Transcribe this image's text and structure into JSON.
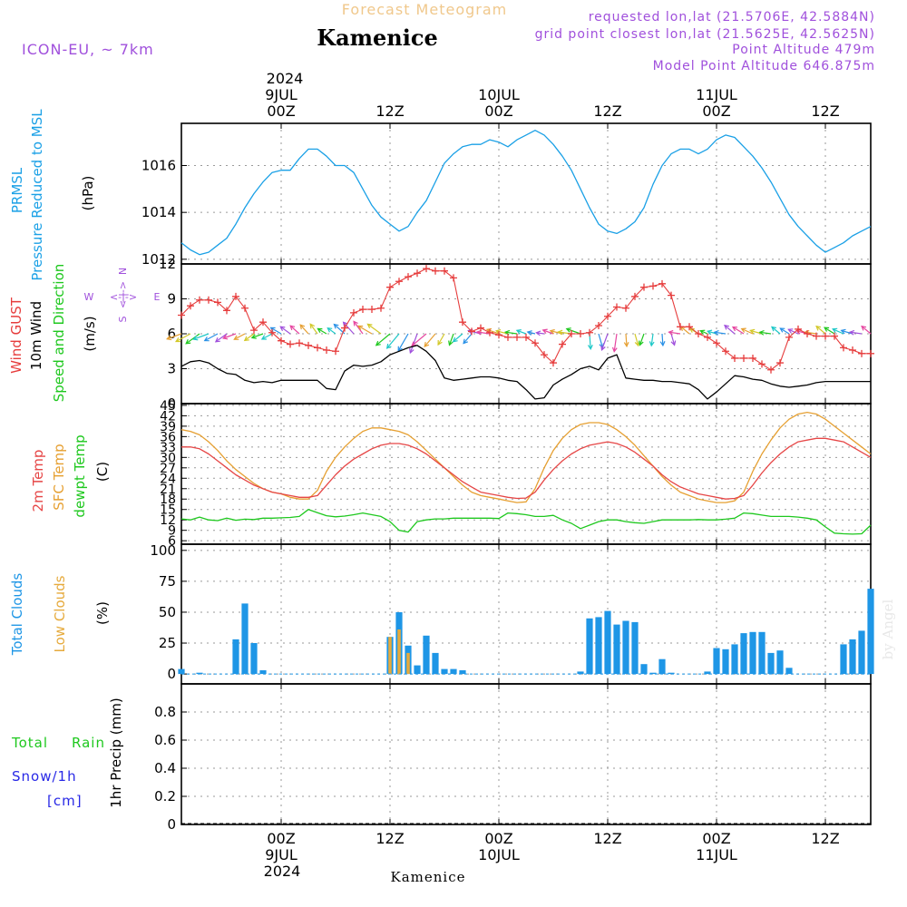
{
  "header": {
    "product": "Forecast Meteogram",
    "location": "Kamenice",
    "model": "ICON-EU, ~ 7km",
    "requested": "requested lon,lat (21.5706E, 42.5884N)",
    "gridpoint": "grid point closest lon,lat (21.5625E, 42.5625N)",
    "point_altitude": "Point Altitude 479m",
    "model_altitude": "Model Point Altitude 646.875m",
    "footer_location": "Kamenice",
    "watermark": "by Angel"
  },
  "colors": {
    "pressure": "#1aa0e6",
    "gust": "#e63c3c",
    "wind": "#000000",
    "t2m": "#e64646",
    "sfc": "#e6a032",
    "dewpt": "#1ec81e",
    "total_clouds": "#1e96e6",
    "low_clouds": "#e6aa3c",
    "rain": "#1ec81e",
    "snow": "#2828e6",
    "purple": "#a050dc",
    "header_orange": "#f0c88c"
  },
  "time_axis": {
    "top_year": "2024",
    "dates": [
      "9JUL",
      "10JUL",
      "11JUL"
    ],
    "date_hours": [
      0,
      24,
      48
    ],
    "ticks": [
      {
        "hour": 0,
        "label": "00Z"
      },
      {
        "hour": 12,
        "label": "12Z"
      },
      {
        "hour": 24,
        "label": "00Z"
      },
      {
        "hour": 36,
        "label": "12Z"
      },
      {
        "hour": 48,
        "label": "00Z"
      },
      {
        "hour": 60,
        "label": "12Z"
      }
    ],
    "start_hour": -11,
    "end_hour": 65
  },
  "panel_labels": {
    "pressure": [
      "PRMSL",
      "Pressure Reduced to MSL"
    ],
    "pressure_unit": "(hPa)",
    "wind_gust": "Wind GUST",
    "wind_10m": "10m Wind",
    "wind_dir": "Speed and Direction",
    "wind_unit": "(m/s)",
    "compass_n": "N",
    "compass_s": "S",
    "compass_w": "W",
    "compass_e": "E",
    "compass_arrow": "<-|->",
    "t2m": "2m Temp",
    "sfc": "SFC Temp",
    "dewpt": "dewpt Temp",
    "temp_unit": "(C)",
    "total_clouds": "Total Clouds",
    "low_clouds": "Low Clouds",
    "cloud_unit": "(%)",
    "rain_total": "Total",
    "rain_rain": "Rain",
    "snow": "Snow/1h",
    "snow_unit": "[cm]",
    "precip": "1hr Precip (mm)"
  },
  "chart_data": [
    {
      "id": "pressure",
      "type": "line",
      "title": "PRMSL Pressure Reduced to MSL",
      "ylabel": "(hPa)",
      "ylim": [
        1011.8,
        1017.8
      ],
      "yticks": [
        1012,
        1014,
        1016
      ],
      "hours": [
        -11,
        -10,
        -9,
        -8,
        -7,
        -6,
        -5,
        -4,
        -3,
        -2,
        -1,
        0,
        1,
        2,
        3,
        4,
        5,
        6,
        7,
        8,
        9,
        10,
        11,
        12,
        13,
        14,
        15,
        16,
        17,
        18,
        19,
        20,
        21,
        22,
        23,
        24,
        25,
        26,
        27,
        28,
        29,
        30,
        31,
        32,
        33,
        34,
        35,
        36,
        37,
        38,
        39,
        40,
        41,
        42,
        43,
        44,
        45,
        46,
        47,
        48,
        49,
        50,
        51,
        52,
        53,
        54,
        55,
        56,
        57,
        58,
        59,
        60,
        61,
        62,
        63,
        64,
        65
      ],
      "values": [
        1012.7,
        1012.4,
        1012.2,
        1012.3,
        1012.6,
        1012.9,
        1013.5,
        1014.2,
        1014.8,
        1015.3,
        1015.7,
        1015.8,
        1015.8,
        1016.3,
        1016.7,
        1016.7,
        1016.4,
        1016.0,
        1016.0,
        1015.7,
        1015.0,
        1014.3,
        1013.8,
        1013.5,
        1013.2,
        1013.4,
        1014.0,
        1014.5,
        1015.3,
        1016.1,
        1016.5,
        1016.8,
        1016.9,
        1016.9,
        1017.1,
        1017.0,
        1016.8,
        1017.1,
        1017.3,
        1017.5,
        1017.3,
        1016.9,
        1016.4,
        1015.8,
        1015.0,
        1014.2,
        1013.5,
        1013.2,
        1013.1,
        1013.3,
        1013.6,
        1014.2,
        1015.2,
        1016.0,
        1016.5,
        1016.7,
        1016.7,
        1016.5,
        1016.7,
        1017.1,
        1017.3,
        1017.2,
        1016.8,
        1016.4,
        1015.9,
        1015.3,
        1014.6,
        1013.9,
        1013.4,
        1013.0,
        1012.6,
        1012.3,
        1012.5,
        1012.7,
        1013.0,
        1013.2,
        1013.4
      ]
    },
    {
      "id": "wind",
      "type": "line",
      "title": "Wind GUST / 10m Wind Speed and Direction",
      "ylabel": "(m/s)",
      "ylim": [
        0,
        12
      ],
      "yticks": [
        0,
        3,
        6,
        9,
        12
      ],
      "hours": [
        -11,
        -10,
        -9,
        -8,
        -7,
        -6,
        -5,
        -4,
        -3,
        -2,
        -1,
        0,
        1,
        2,
        3,
        4,
        5,
        6,
        7,
        8,
        9,
        10,
        11,
        12,
        13,
        14,
        15,
        16,
        17,
        18,
        19,
        20,
        21,
        22,
        23,
        24,
        25,
        26,
        27,
        28,
        29,
        30,
        31,
        32,
        33,
        34,
        35,
        36,
        37,
        38,
        39,
        40,
        41,
        42,
        43,
        44,
        45,
        46,
        47,
        48,
        49,
        50,
        51,
        52,
        53,
        54,
        55,
        56,
        57,
        58,
        59,
        60,
        61,
        62,
        63,
        64,
        65
      ],
      "series": [
        {
          "name": "Wind GUST",
          "values": [
            7.6,
            8.4,
            8.9,
            8.9,
            8.7,
            8.0,
            9.2,
            8.2,
            6.3,
            7.0,
            6.1,
            5.4,
            5.1,
            5.2,
            5.0,
            4.8,
            4.6,
            4.5,
            6.5,
            7.8,
            8.1,
            8.1,
            8.2,
            10.0,
            10.5,
            10.9,
            11.2,
            11.6,
            11.4,
            11.4,
            10.8,
            7.0,
            6.2,
            6.5,
            6.1,
            5.9,
            5.7,
            5.7,
            5.7,
            5.2,
            4.2,
            3.5,
            5.1,
            6.0,
            6.0,
            6.1,
            6.7,
            7.5,
            8.3,
            8.2,
            9.2,
            10.0,
            10.1,
            10.3,
            9.3,
            6.6,
            6.6,
            6.0,
            5.7,
            5.2,
            4.5,
            3.9,
            3.9,
            3.9,
            3.4,
            2.9,
            3.5,
            5.7,
            6.4,
            6.0,
            5.8,
            5.8,
            5.8,
            4.8,
            4.6,
            4.3,
            4.3
          ]
        },
        {
          "name": "10m Wind",
          "values": [
            3.2,
            3.6,
            3.7,
            3.5,
            3.0,
            2.6,
            2.5,
            2.0,
            1.8,
            1.9,
            1.8,
            2.0,
            2.0,
            2.0,
            2.0,
            2.0,
            1.3,
            1.2,
            2.8,
            3.3,
            3.2,
            3.3,
            3.6,
            4.2,
            4.5,
            4.8,
            5.0,
            4.5,
            3.7,
            2.2,
            2.0,
            2.1,
            2.2,
            2.3,
            2.3,
            2.2,
            2.0,
            1.9,
            1.2,
            0.4,
            0.5,
            1.6,
            2.1,
            2.5,
            3.0,
            3.2,
            2.9,
            3.9,
            4.2,
            2.2,
            2.1,
            2.0,
            2.0,
            1.9,
            1.9,
            1.8,
            1.7,
            1.2,
            0.4,
            1.0,
            1.7,
            2.4,
            2.3,
            2.1,
            2.0,
            1.7,
            1.5,
            1.4,
            1.5,
            1.6,
            1.8,
            1.9,
            1.9,
            1.9,
            1.9,
            1.9,
            1.9
          ]
        }
      ]
    },
    {
      "id": "temperature",
      "type": "line",
      "title": "2m Temp / SFC Temp / dewpt Temp",
      "ylabel": "(C)",
      "ylim": [
        5,
        45.5
      ],
      "yticks": [
        6,
        9,
        12,
        15,
        18,
        21,
        24,
        27,
        30,
        33,
        36,
        39,
        42,
        45
      ],
      "hours": [
        -11,
        -10,
        -9,
        -8,
        -7,
        -6,
        -5,
        -4,
        -3,
        -2,
        -1,
        0,
        1,
        2,
        3,
        4,
        5,
        6,
        7,
        8,
        9,
        10,
        11,
        12,
        13,
        14,
        15,
        16,
        17,
        18,
        19,
        20,
        21,
        22,
        23,
        24,
        25,
        26,
        27,
        28,
        29,
        30,
        31,
        32,
        33,
        34,
        35,
        36,
        37,
        38,
        39,
        40,
        41,
        42,
        43,
        44,
        45,
        46,
        47,
        48,
        49,
        50,
        51,
        52,
        53,
        54,
        55,
        56,
        57,
        58,
        59,
        60,
        61,
        62,
        63,
        64,
        65
      ],
      "series": [
        {
          "name": "2m Temp",
          "values": [
            33.0,
            33.0,
            32.5,
            31.0,
            29.0,
            27.0,
            25.0,
            23.5,
            22.0,
            21.0,
            20.0,
            19.5,
            19.0,
            18.5,
            18.5,
            19.0,
            22.0,
            25.0,
            27.5,
            29.5,
            31.0,
            32.5,
            33.5,
            34.0,
            34.0,
            33.5,
            32.5,
            31.0,
            29.0,
            27.0,
            25.0,
            23.0,
            21.5,
            20.0,
            19.5,
            19.0,
            18.5,
            18.2,
            18.3,
            20.0,
            23.5,
            26.5,
            29.0,
            31.0,
            32.5,
            33.5,
            34.0,
            34.5,
            34.0,
            33.0,
            31.5,
            29.5,
            27.5,
            25.0,
            23.0,
            21.5,
            20.5,
            19.5,
            19.0,
            18.5,
            18.0,
            18.2,
            19.0,
            22.0,
            25.5,
            28.5,
            31.0,
            33.0,
            34.5,
            35.0,
            35.5,
            35.5,
            35.0,
            34.5,
            33.0,
            31.5,
            30.0
          ]
        },
        {
          "name": "SFC Temp",
          "values": [
            38.0,
            37.5,
            36.5,
            34.5,
            32.0,
            29.0,
            26.5,
            24.5,
            22.5,
            21.0,
            20.0,
            19.5,
            18.5,
            18.0,
            18.0,
            20.5,
            26.0,
            30.0,
            33.0,
            35.5,
            37.5,
            38.5,
            38.5,
            38.0,
            37.5,
            36.5,
            34.5,
            32.0,
            29.5,
            27.0,
            24.5,
            22.0,
            20.0,
            19.0,
            18.5,
            18.0,
            17.5,
            17.0,
            17.2,
            21.0,
            27.0,
            32.0,
            35.5,
            38.0,
            39.5,
            40.0,
            40.0,
            39.5,
            38.0,
            36.0,
            33.5,
            30.5,
            27.5,
            24.5,
            22.0,
            20.0,
            19.0,
            18.0,
            17.5,
            17.0,
            17.0,
            17.5,
            20.0,
            26.0,
            31.0,
            35.0,
            38.5,
            41.0,
            42.5,
            43.0,
            42.5,
            41.0,
            39.0,
            37.0,
            35.0,
            33.0,
            31.0
          ]
        },
        {
          "name": "dewpt Temp",
          "values": [
            12.3,
            12.0,
            12.8,
            12.0,
            11.8,
            12.5,
            11.9,
            12.2,
            12.1,
            12.5,
            12.5,
            12.6,
            12.7,
            13.0,
            15.0,
            14.1,
            13.2,
            12.9,
            13.1,
            13.5,
            14.0,
            13.5,
            13.0,
            11.5,
            9.0,
            8.5,
            11.5,
            12.0,
            12.3,
            12.3,
            12.5,
            12.5,
            12.5,
            12.5,
            12.5,
            12.4,
            14.0,
            13.8,
            13.5,
            13.0,
            13.0,
            13.3,
            12.0,
            11.0,
            9.5,
            10.5,
            11.5,
            12.0,
            12.0,
            11.5,
            11.2,
            11.0,
            11.5,
            12.0,
            12.0,
            12.0,
            12.0,
            12.1,
            12.0,
            12.0,
            12.2,
            12.5,
            14.0,
            13.8,
            13.4,
            13.0,
            13.0,
            13.0,
            12.8,
            12.5,
            12.0,
            10.0,
            8.2,
            8.0,
            7.9,
            8.0,
            10.5
          ]
        }
      ]
    },
    {
      "id": "clouds",
      "type": "bar",
      "title": "Total Clouds / Low Clouds",
      "ylabel": "(%)",
      "ylim": [
        -8,
        105
      ],
      "yticks": [
        0,
        25,
        50,
        75,
        100
      ],
      "hours": [
        -11,
        -10,
        -9,
        -8,
        -7,
        -6,
        -5,
        -4,
        -3,
        -2,
        -1,
        0,
        1,
        2,
        3,
        4,
        5,
        6,
        7,
        8,
        9,
        10,
        11,
        12,
        13,
        14,
        15,
        16,
        17,
        18,
        19,
        20,
        21,
        22,
        23,
        24,
        25,
        26,
        27,
        28,
        29,
        30,
        31,
        32,
        33,
        34,
        35,
        36,
        37,
        38,
        39,
        40,
        41,
        42,
        43,
        44,
        45,
        46,
        47,
        48,
        49,
        50,
        51,
        52,
        53,
        54,
        55,
        56,
        57,
        58,
        59,
        60,
        61,
        62,
        63,
        64,
        65
      ],
      "series": [
        {
          "name": "Total Clouds",
          "values": [
            4,
            0,
            1,
            0,
            0,
            0,
            28,
            57,
            25,
            3,
            0,
            0,
            0,
            0,
            0,
            0,
            0,
            0,
            0,
            0,
            0,
            0,
            0,
            30,
            50,
            23,
            7,
            31,
            17,
            4,
            4,
            3,
            0,
            0,
            0,
            0,
            0,
            0,
            0,
            0,
            0,
            0,
            0,
            0,
            2,
            45,
            46,
            51,
            40,
            43,
            42,
            8,
            1,
            12,
            1,
            0,
            0,
            0,
            2,
            21,
            20,
            24,
            33,
            34,
            34,
            17,
            19,
            5,
            0,
            0,
            0,
            0,
            0,
            24,
            28,
            35,
            69
          ]
        },
        {
          "name": "Low Clouds",
          "values": [
            0,
            0,
            0,
            0,
            0,
            0,
            0,
            0,
            0,
            0,
            0,
            0,
            0,
            0,
            0,
            0,
            0,
            0,
            0,
            0,
            0,
            0,
            0,
            30,
            36,
            17,
            0,
            0,
            0,
            0,
            0,
            0,
            0,
            0,
            0,
            0,
            0,
            0,
            0,
            0,
            0,
            0,
            0,
            0,
            0,
            0,
            0,
            0,
            0,
            0,
            0,
            0,
            0,
            0,
            0,
            0,
            0,
            0,
            0,
            0,
            0,
            0,
            0,
            0,
            0,
            0,
            0,
            0,
            0,
            0,
            0,
            0,
            0,
            0,
            0,
            0,
            0
          ]
        }
      ]
    },
    {
      "id": "precip",
      "type": "bar",
      "title": "1hr Precip",
      "ylabel": "1hr Precip (mm)",
      "ylim": [
        0,
        1.0
      ],
      "yticks": [
        0,
        0.2,
        0.4,
        0.6,
        0.8
      ],
      "ytick_labels": [
        "0",
        "0.2",
        "0.4",
        "0.6",
        "0.8"
      ],
      "series": [
        {
          "name": "Total Rain",
          "values": []
        },
        {
          "name": "Snow/1h",
          "values": []
        }
      ]
    }
  ]
}
